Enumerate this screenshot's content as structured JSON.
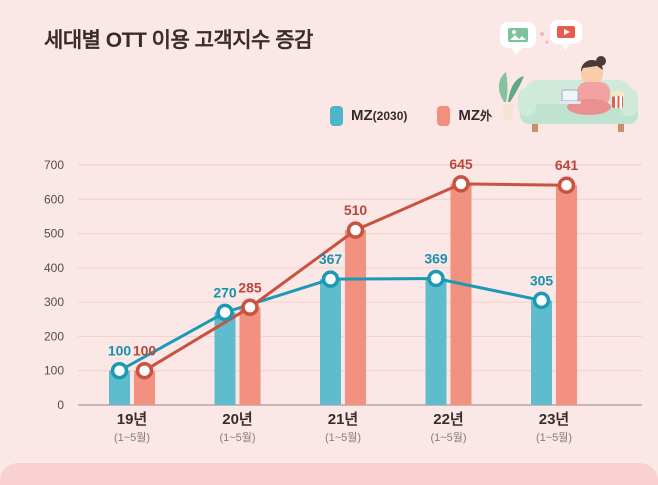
{
  "title": "세대별 OTT 이용 고객지수 증감",
  "legend": {
    "items": [
      {
        "main": "MZ",
        "sub": "(2030)",
        "color": "#4eb5ca"
      },
      {
        "main": "MZ",
        "sub": "外",
        "color": "#f1907e"
      }
    ]
  },
  "chart_data": {
    "type": "bar+line",
    "title": "세대별 OTT 이용 고객지수 증감",
    "categories": [
      "19년",
      "20년",
      "21년",
      "22년",
      "23년"
    ],
    "category_sub": "(1~5월)",
    "series": [
      {
        "name": "MZ(2030)",
        "values": [
          100,
          270,
          367,
          369,
          305
        ],
        "bar_color": "#5ebccd",
        "line_color": "#1b9ab6",
        "label_color": "#1792ad"
      },
      {
        "name": "MZ外",
        "values": [
          100,
          285,
          510,
          645,
          641
        ],
        "bar_color": "#f2917f",
        "line_color": "#ca5240",
        "label_color": "#b8483a"
      }
    ],
    "yticks": [
      0,
      100,
      200,
      300,
      400,
      500,
      600,
      700
    ],
    "ylim": [
      0,
      700
    ],
    "grid": true,
    "legend_position": "top"
  },
  "colors": {
    "background": "#fbe7e6",
    "footer_strip": "#f8d1d0",
    "grid": "#f2cfce",
    "axis": "#b9a6a5",
    "title": "#3a2c2c",
    "tick_label": "#5c4a4a",
    "category_label": "#3a2c2c",
    "category_sub": "#8d7878"
  },
  "icons": {
    "illustration": "person-on-sofa-watching-ott-with-laptop"
  }
}
